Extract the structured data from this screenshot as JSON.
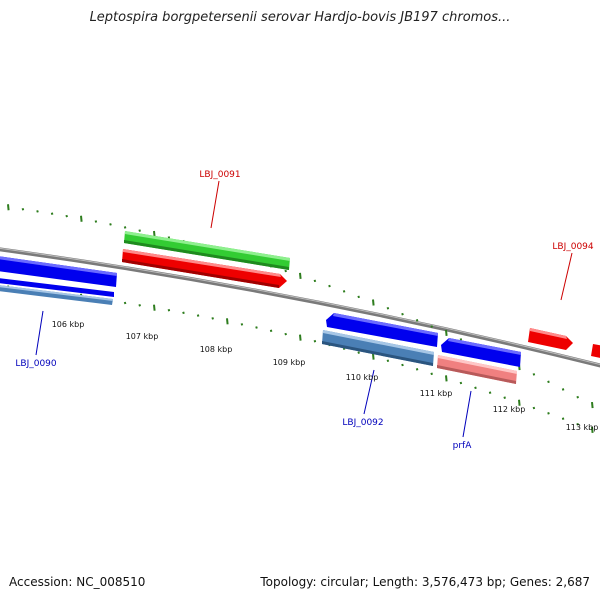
{
  "title": "Leptospira borgpetersenii serovar Hardjo-bovis JB197 chromos...",
  "footer": {
    "accession": "Accession: NC_008510",
    "topology": "Topology: circular; Length: 3,576,473 bp; Genes: 2,687"
  },
  "colors": {
    "backbone": "#7a7a7a",
    "tick": "#2e7d1e",
    "forward_strong": "#0000ee",
    "forward_light": "#4a7fb5",
    "reverse_strong": "#ee0000",
    "reverse_light": "#f08080",
    "rna_green": "#33cc33",
    "label_red": "#cc0000",
    "label_blue": "#0000bb"
  },
  "scale": {
    "tick_labels": [
      "106 kbp",
      "107 kbp",
      "108 kbp",
      "109 kbp",
      "110 kbp",
      "111 kbp",
      "112 kbp",
      "113 kbp"
    ]
  },
  "gene_labels": [
    {
      "text": "LBJ_0091",
      "color": "#cc0000"
    },
    {
      "text": "LBJ_0094",
      "color": "#cc0000"
    },
    {
      "text": "LBJ_0090",
      "color": "#0000bb"
    },
    {
      "text": "LBJ_0092",
      "color": "#0000bb"
    },
    {
      "text": "prfA",
      "color": "#0000bb"
    }
  ]
}
